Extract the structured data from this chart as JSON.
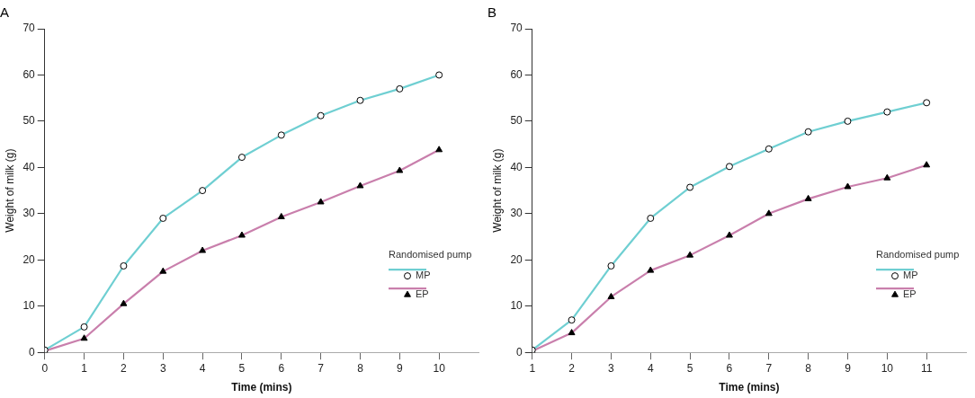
{
  "chart_data": [
    {
      "type": "line",
      "title": "A",
      "xlabel": "Time (mins)",
      "ylabel": "Weight of milk (g)",
      "legend_title": "Randomised pump",
      "x": [
        0,
        1,
        2,
        3,
        4,
        5,
        6,
        7,
        8,
        9,
        10
      ],
      "series": [
        {
          "name": "MP",
          "color": "#6fcfd2",
          "marker": "circle",
          "values": [
            0.5,
            5.5,
            18.7,
            29,
            35,
            42.2,
            47,
            51.2,
            54.5,
            57,
            60
          ]
        },
        {
          "name": "EP",
          "color": "#c97fac",
          "marker": "triangle",
          "values": [
            0.3,
            3,
            10.5,
            17.5,
            22,
            25.3,
            29.3,
            32.5,
            36,
            39.3,
            43.8
          ]
        }
      ],
      "xlim": [
        0,
        11
      ],
      "xticks": [
        0,
        1,
        2,
        3,
        4,
        5,
        6,
        7,
        8,
        9,
        10
      ],
      "ylim": [
        0,
        70
      ],
      "yticks": [
        0,
        10,
        20,
        30,
        40,
        50,
        60,
        70
      ],
      "grid": false,
      "legend": "bottom right",
      "line_style": "solid"
    },
    {
      "type": "line",
      "title": "B",
      "xlabel": "Time (mins)",
      "ylabel": "Weight of milk (g)",
      "legend_title": "Randomised pump",
      "x": [
        1,
        2,
        3,
        4,
        5,
        6,
        7,
        8,
        9,
        10,
        11
      ],
      "series": [
        {
          "name": "MP",
          "color": "#6fcfd2",
          "marker": "circle",
          "values": [
            0.5,
            7,
            18.7,
            29,
            35.7,
            40.2,
            44,
            47.7,
            50,
            52,
            54
          ]
        },
        {
          "name": "EP",
          "color": "#c97fac",
          "marker": "triangle",
          "values": [
            0.3,
            4.2,
            12,
            17.7,
            21,
            25.3,
            30,
            33.2,
            35.8,
            37.7,
            40.5
          ]
        }
      ],
      "xlim": [
        1,
        12
      ],
      "xticks": [
        1,
        2,
        3,
        4,
        5,
        6,
        7,
        8,
        9,
        10,
        11
      ],
      "ylim": [
        0,
        70
      ],
      "yticks": [
        0,
        10,
        20,
        30,
        40,
        50,
        60,
        70
      ],
      "grid": false,
      "legend": "bottom right",
      "line_style": "solid"
    }
  ]
}
